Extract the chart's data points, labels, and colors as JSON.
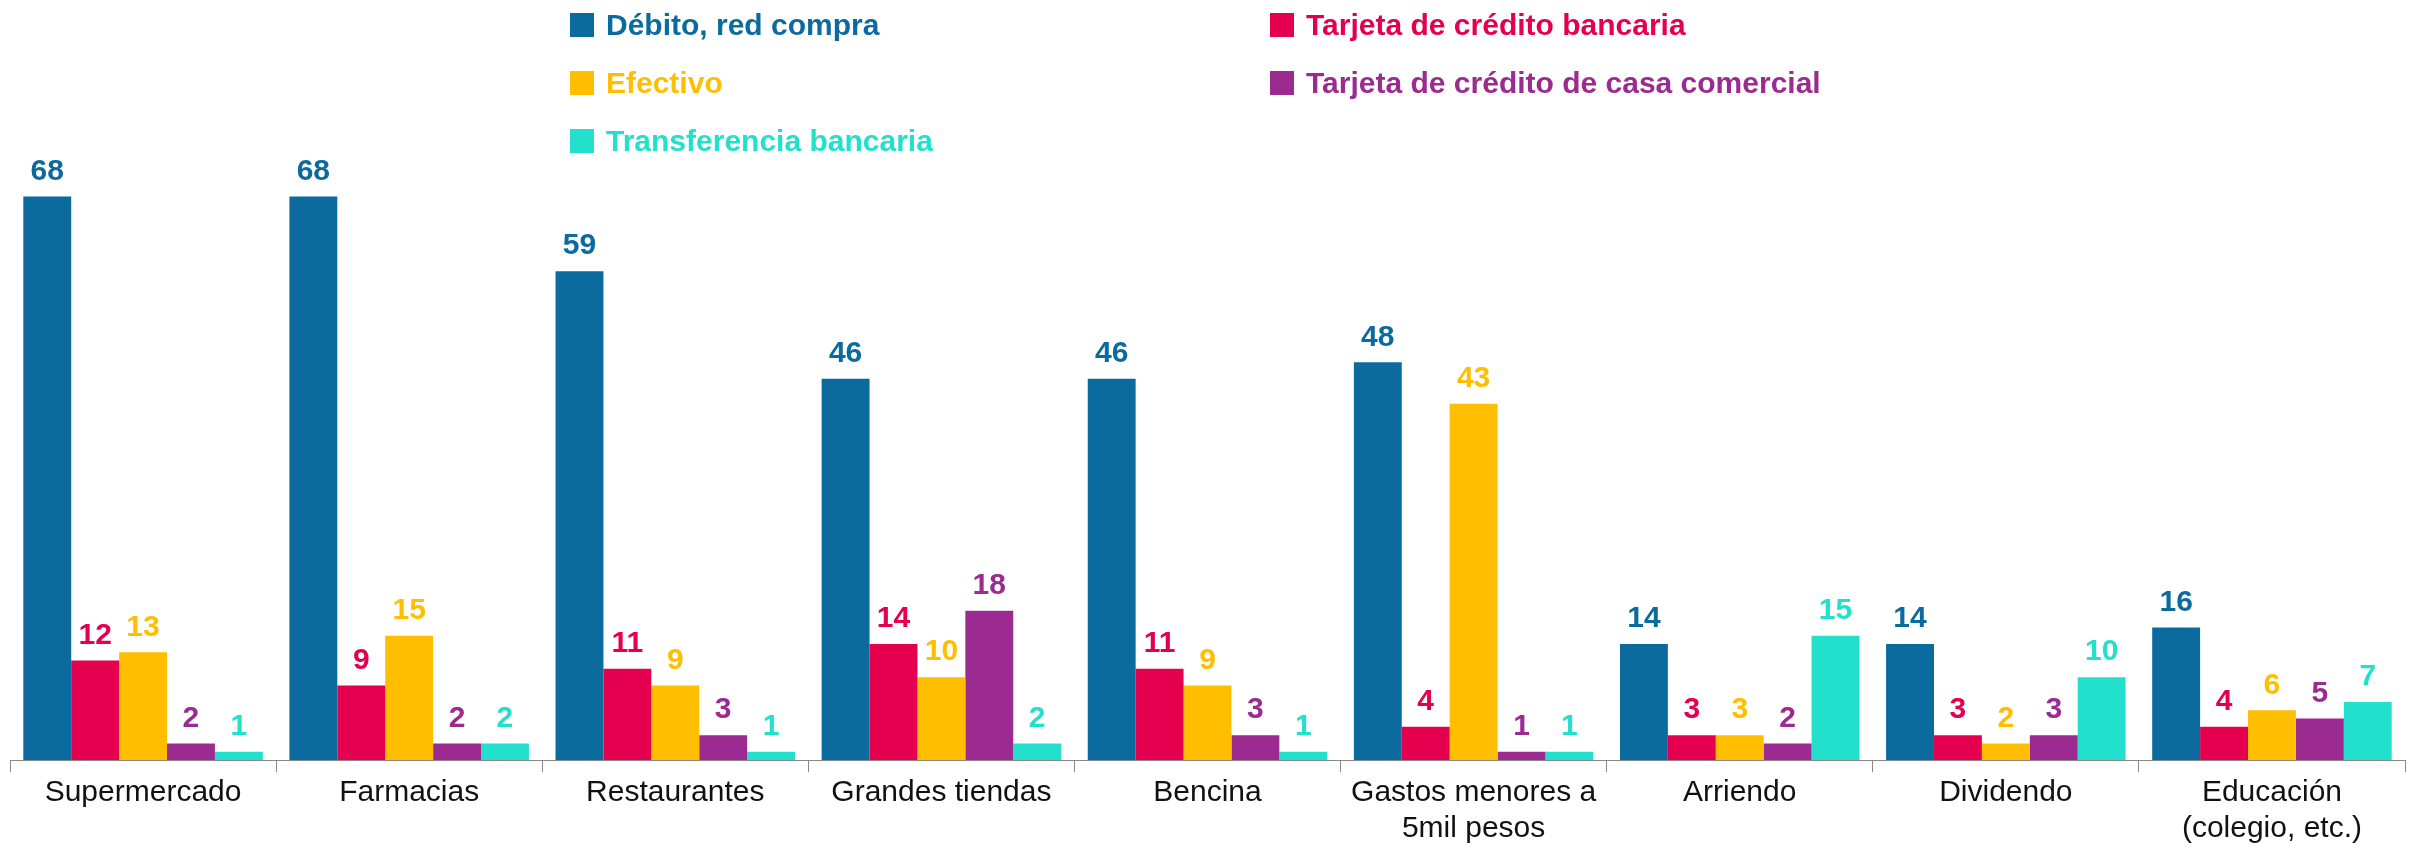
{
  "chart_data": {
    "type": "bar",
    "categories": [
      "Supermercado",
      "Farmacias",
      "Restaurantes",
      "Grandes tiendas",
      "Bencina",
      "Gastos menores a 5mil pesos",
      "Arriendo",
      "Dividendo",
      "Educación (colegio, etc.)"
    ],
    "series": [
      {
        "name": "Débito, red compra",
        "color": "#0b6a9e",
        "values": [
          68,
          68,
          59,
          46,
          46,
          48,
          14,
          14,
          16
        ]
      },
      {
        "name": "Tarjeta de crédito bancaria",
        "color": "#e5004f",
        "values": [
          12,
          9,
          11,
          14,
          11,
          4,
          3,
          3,
          4
        ]
      },
      {
        "name": "Efectivo",
        "color": "#ffbf00",
        "values": [
          13,
          15,
          9,
          10,
          9,
          43,
          3,
          2,
          6
        ]
      },
      {
        "name": "Tarjeta de crédito de casa comercial",
        "color": "#9b2a91",
        "values": [
          2,
          2,
          3,
          18,
          3,
          1,
          2,
          3,
          5
        ]
      },
      {
        "name": "Transferencia bancaria",
        "color": "#22e0cc",
        "values": [
          1,
          2,
          1,
          2,
          1,
          1,
          15,
          10,
          7
        ]
      }
    ],
    "data_labels": true,
    "legend": "top",
    "tick_labels": "x"
  }
}
